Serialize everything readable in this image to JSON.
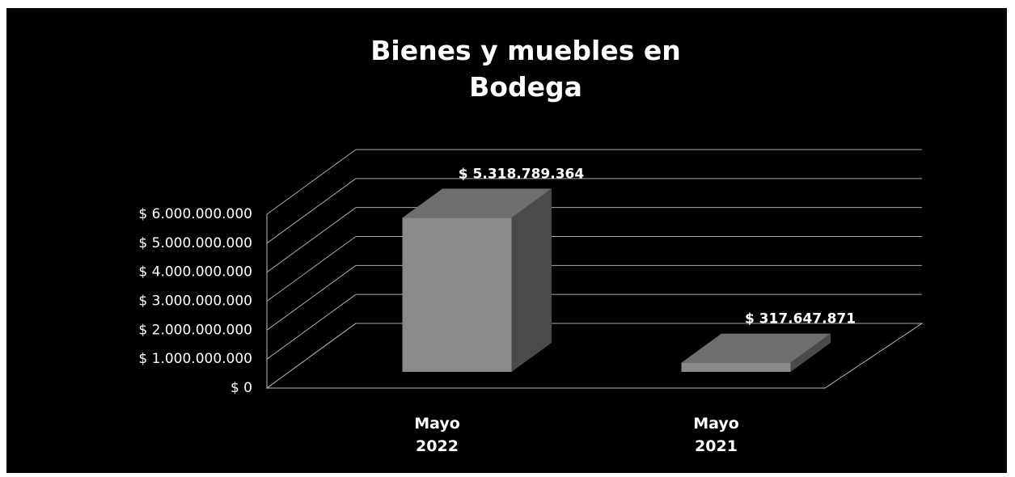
{
  "chart_data": {
    "type": "bar3d",
    "title": "Bienes y muebles en Bodega",
    "categories": [
      "Mayo 2022",
      "Mayo 2021"
    ],
    "values": [
      5318789364,
      317647871
    ],
    "value_labels": [
      "$ 5.318.789.364",
      "$ 317.647.871"
    ],
    "color": "#8a8a8a",
    "ylim": [
      0,
      6000000000
    ],
    "yticks": [
      {
        "value": 0,
        "label": "$ 0"
      },
      {
        "value": 1000000000,
        "label": "$ 1.000.000.000"
      },
      {
        "value": 2000000000,
        "label": "$ 2.000.000.000"
      },
      {
        "value": 3000000000,
        "label": "$ 3.000.000.000"
      },
      {
        "value": 4000000000,
        "label": "$ 4.000.000.000"
      },
      {
        "value": 5000000000,
        "label": "$ 5.000.000.000"
      },
      {
        "value": 6000000000,
        "label": "$ 6.000.000.000"
      }
    ],
    "grid": true
  }
}
